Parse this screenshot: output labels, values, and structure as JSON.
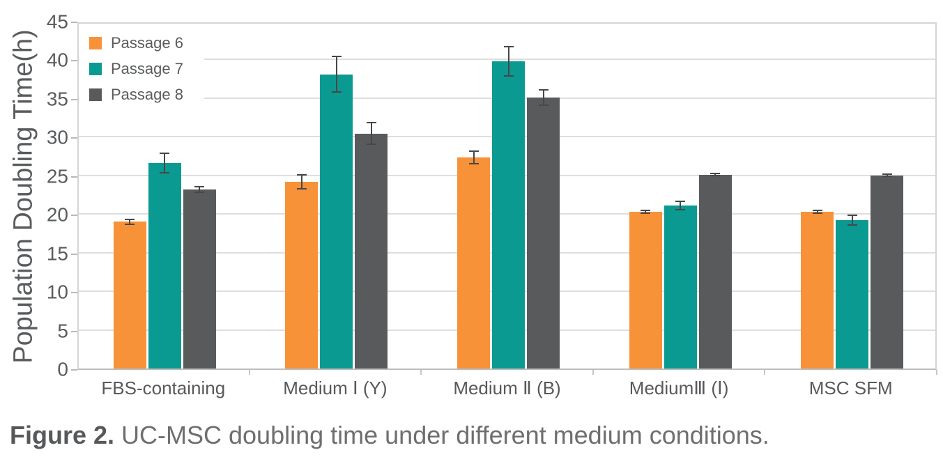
{
  "chart_data": {
    "type": "bar",
    "title": "",
    "xlabel": "",
    "ylabel": "Population Doubling Time(h)",
    "ylim": [
      0,
      45
    ],
    "yticks": [
      0,
      5,
      10,
      15,
      20,
      25,
      30,
      35,
      40,
      45
    ],
    "grid": true,
    "legend_position": "top-left",
    "categories": [
      "FBS-containing",
      "Medium Ⅰ (Y)",
      "Medium Ⅱ (B)",
      "MediumⅢ (Ⅰ)",
      "MSC SFM"
    ],
    "series": [
      {
        "name": "Passage 6",
        "color": "#f79239",
        "values": [
          19.0,
          24.2,
          27.3,
          20.3,
          20.3
        ],
        "errors": [
          0.3,
          0.9,
          0.8,
          0.2,
          0.2
        ]
      },
      {
        "name": "Passage 7",
        "color": "#0b9a92",
        "values": [
          26.6,
          38.1,
          39.8,
          21.1,
          19.2
        ],
        "errors": [
          1.3,
          2.3,
          1.9,
          0.5,
          0.6
        ]
      },
      {
        "name": "Passage 8",
        "color": "#595a5c",
        "values": [
          23.2,
          30.4,
          35.1,
          25.1,
          25.0
        ],
        "errors": [
          0.35,
          1.4,
          1.0,
          0.15,
          0.12
        ]
      }
    ],
    "error_bar_color": "#474747"
  },
  "caption": {
    "prefix": "Figure 2.",
    "rest": " UC-MSC doubling time under different medium conditions."
  }
}
